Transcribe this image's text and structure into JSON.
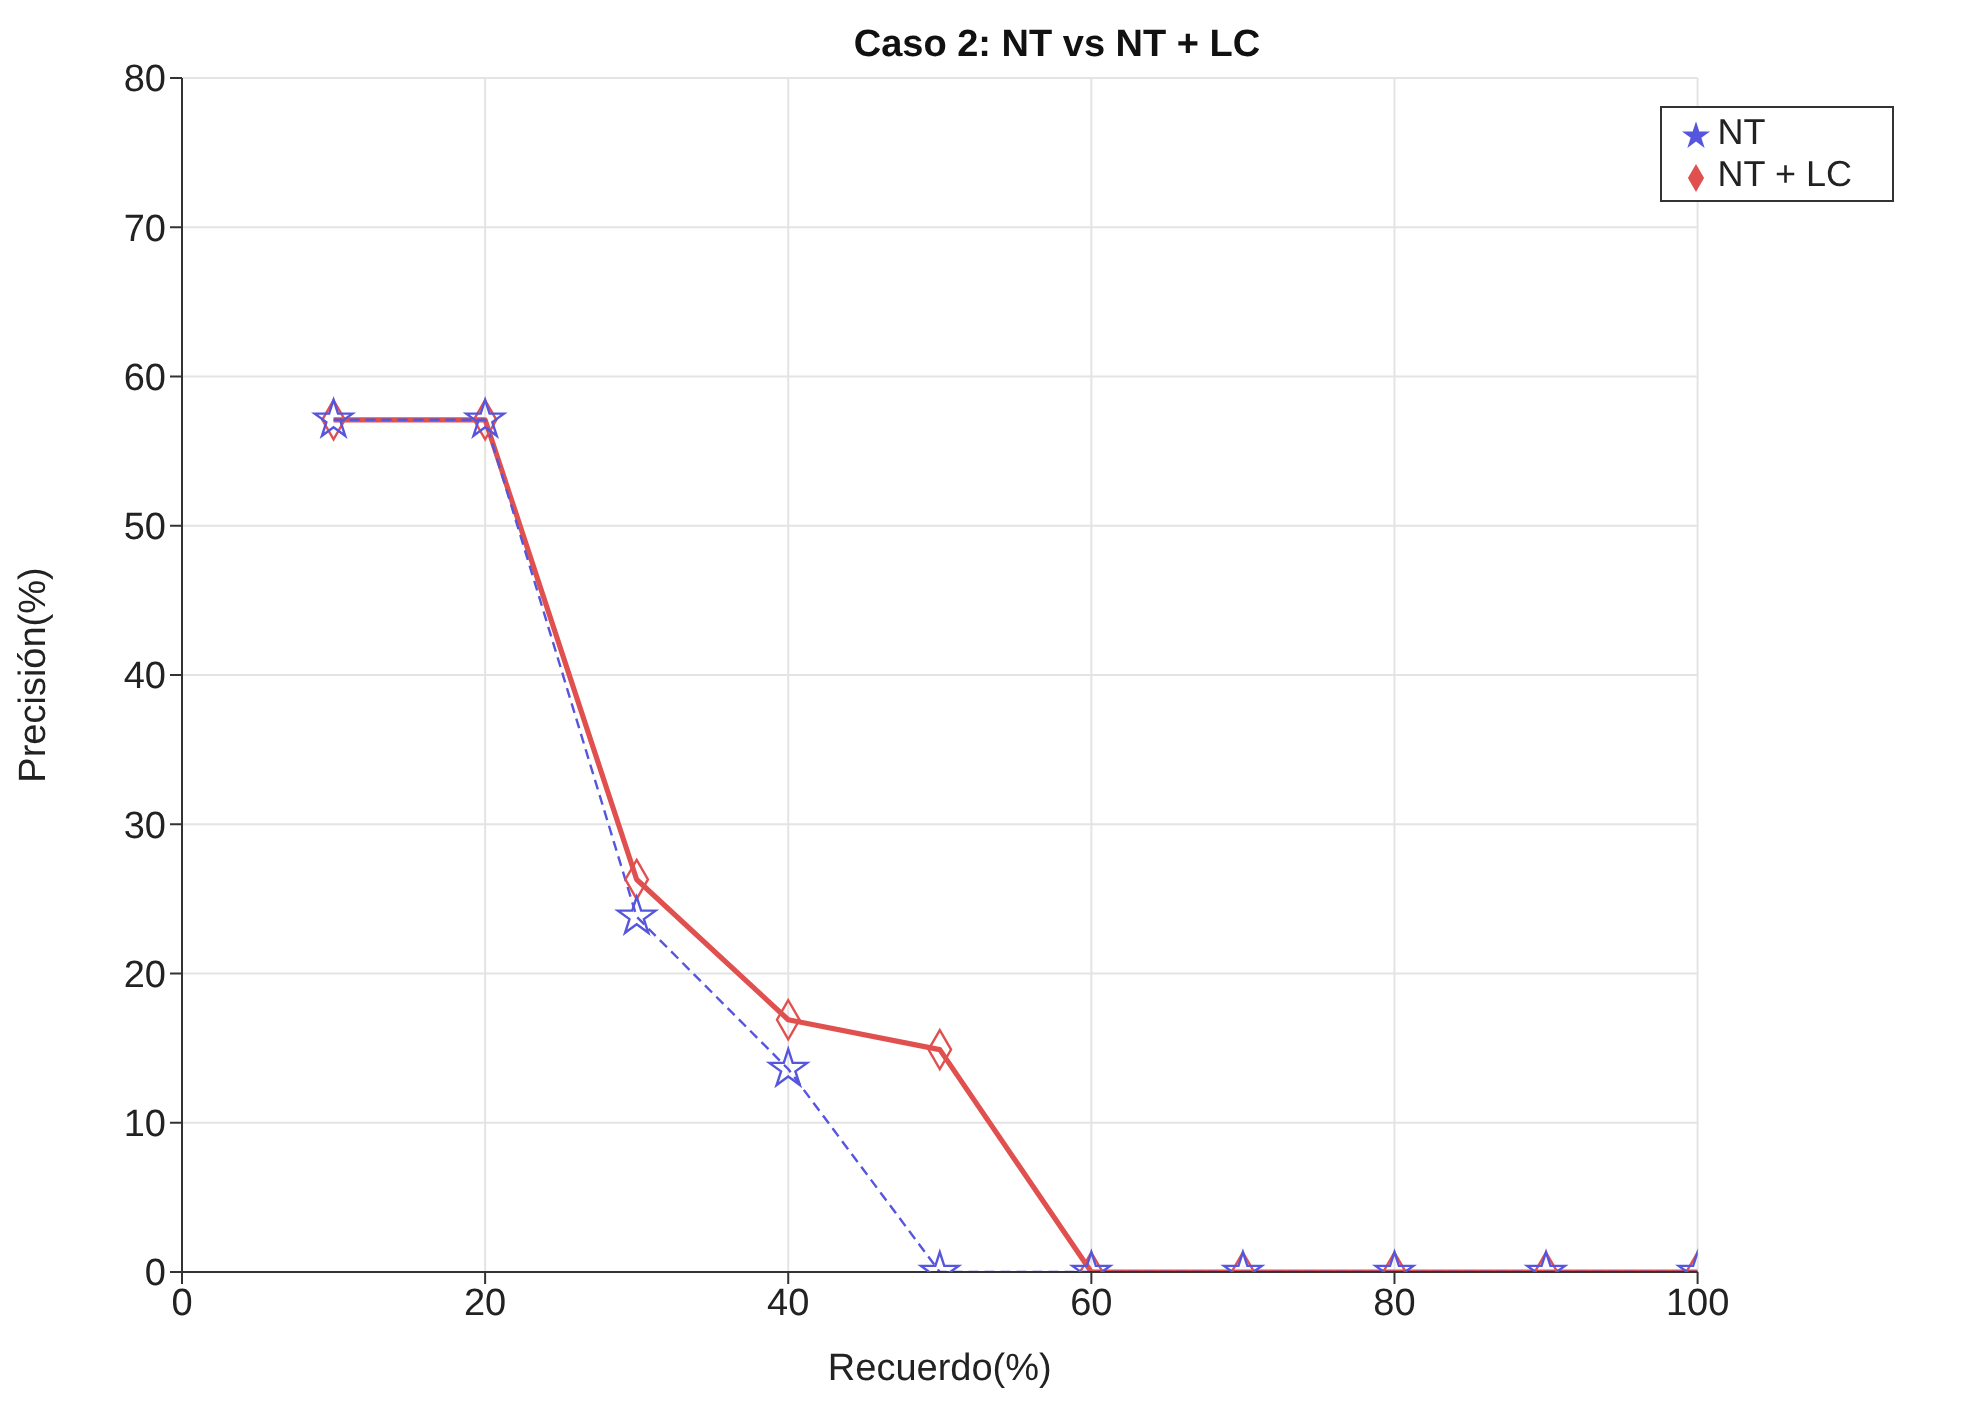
{
  "chart_data": {
    "type": "line",
    "title": "Caso 2: NT vs NT + LC",
    "xlabel": "Recuerdo(%)",
    "ylabel": "Precisión(%)",
    "x": [
      10,
      20,
      30,
      40,
      50,
      60,
      70,
      80,
      90,
      100
    ],
    "series": [
      {
        "name": "NT",
        "color": "#5555dd",
        "marker": "star",
        "line_style": "dashed",
        "values": [
          57.1,
          57.1,
          23.8,
          13.6,
          0,
          0,
          0,
          0,
          0,
          0
        ]
      },
      {
        "name": "NT + LC",
        "color": "#e0504f",
        "marker": "diamond",
        "line_style": "solid",
        "values": [
          57.1,
          57.1,
          26.3,
          16.9,
          14.9,
          0,
          0,
          0,
          0,
          0
        ]
      }
    ],
    "xlim": [
      0,
      100
    ],
    "xticks": [
      0,
      20,
      40,
      60,
      80,
      100
    ],
    "ylim": [
      0,
      80
    ],
    "yticks": [
      0,
      10,
      20,
      30,
      40,
      50,
      60,
      70,
      80
    ],
    "grid": true,
    "legend": "top right"
  }
}
